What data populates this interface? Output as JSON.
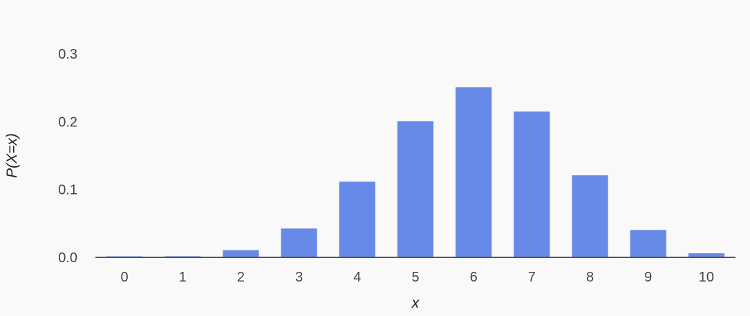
{
  "chart_data": {
    "type": "bar",
    "title": "",
    "xlabel": "x",
    "ylabel": "P(X=x)",
    "categories": [
      "0",
      "1",
      "2",
      "3",
      "4",
      "5",
      "6",
      "7",
      "8",
      "9",
      "10"
    ],
    "values": [
      0.0001,
      0.0016,
      0.0106,
      0.0425,
      0.1115,
      0.2007,
      0.2508,
      0.215,
      0.1209,
      0.0403,
      0.006
    ],
    "y_ticks": [
      "0.0",
      "0.1",
      "0.2",
      "0.3"
    ],
    "ylim": [
      0,
      0.3
    ],
    "grid": false,
    "legend": "none",
    "colors": {
      "bar": "#6789e8",
      "axis": "#555555",
      "background": "#f9f9f9"
    }
  }
}
